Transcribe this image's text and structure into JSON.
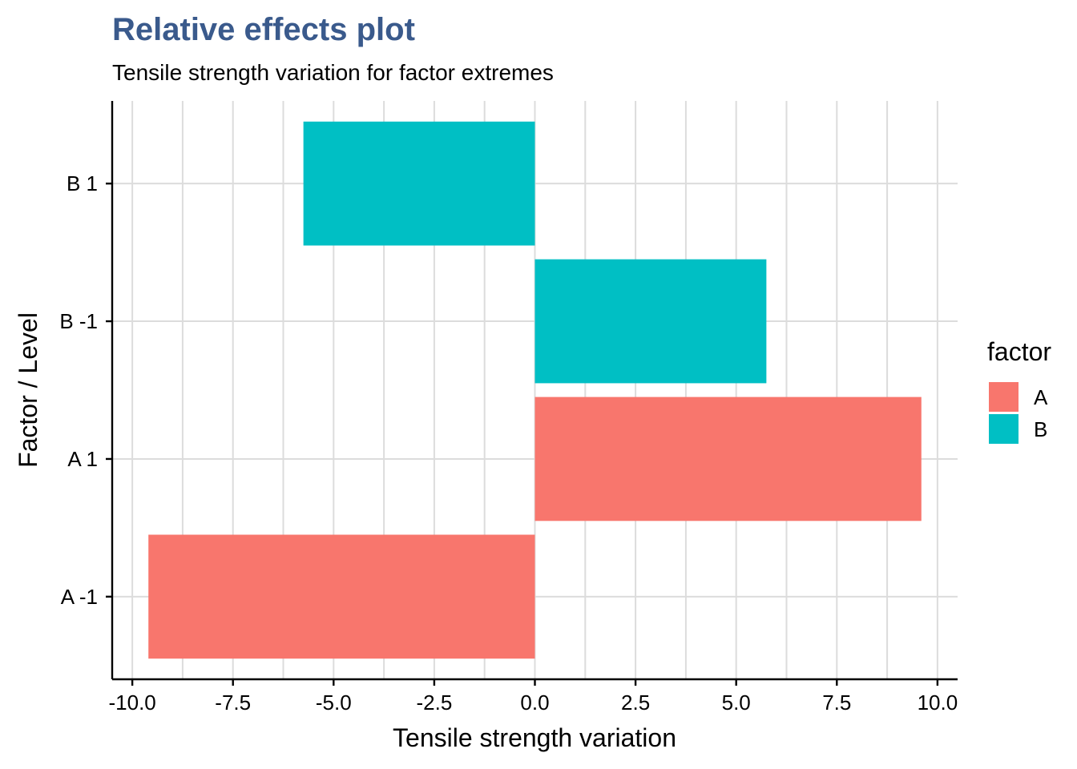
{
  "chart_data": {
    "type": "bar",
    "orientation": "horizontal",
    "title": "Relative effects plot",
    "subtitle": "Tensile strength variation for factor extremes",
    "xlabel": "Tensile strength variation",
    "ylabel": "Factor / Level",
    "xlim": [
      -10.5,
      10.5
    ],
    "x_ticks": [
      -10.0,
      -7.5,
      -5.0,
      -2.5,
      0.0,
      2.5,
      5.0,
      7.5,
      10.0
    ],
    "x_tick_labels": [
      "-10.0",
      "-7.5",
      "-5.0",
      "-2.5",
      "0.0",
      "2.5",
      "5.0",
      "7.5",
      "10.0"
    ],
    "categories": [
      "A -1",
      "A 1",
      "B -1",
      "B 1"
    ],
    "values": [
      -9.6,
      9.6,
      5.75,
      -5.75
    ],
    "bar_factor": [
      "A",
      "A",
      "B",
      "B"
    ],
    "grid": true,
    "legend": {
      "title": "factor",
      "placement": "right",
      "entries": [
        {
          "label": "A",
          "color": "#F8766D"
        },
        {
          "label": "B",
          "color": "#00BFC4"
        }
      ]
    },
    "colors": {
      "A": "#F8766D",
      "B": "#00BFC4",
      "title": "#3a5a8c"
    }
  }
}
